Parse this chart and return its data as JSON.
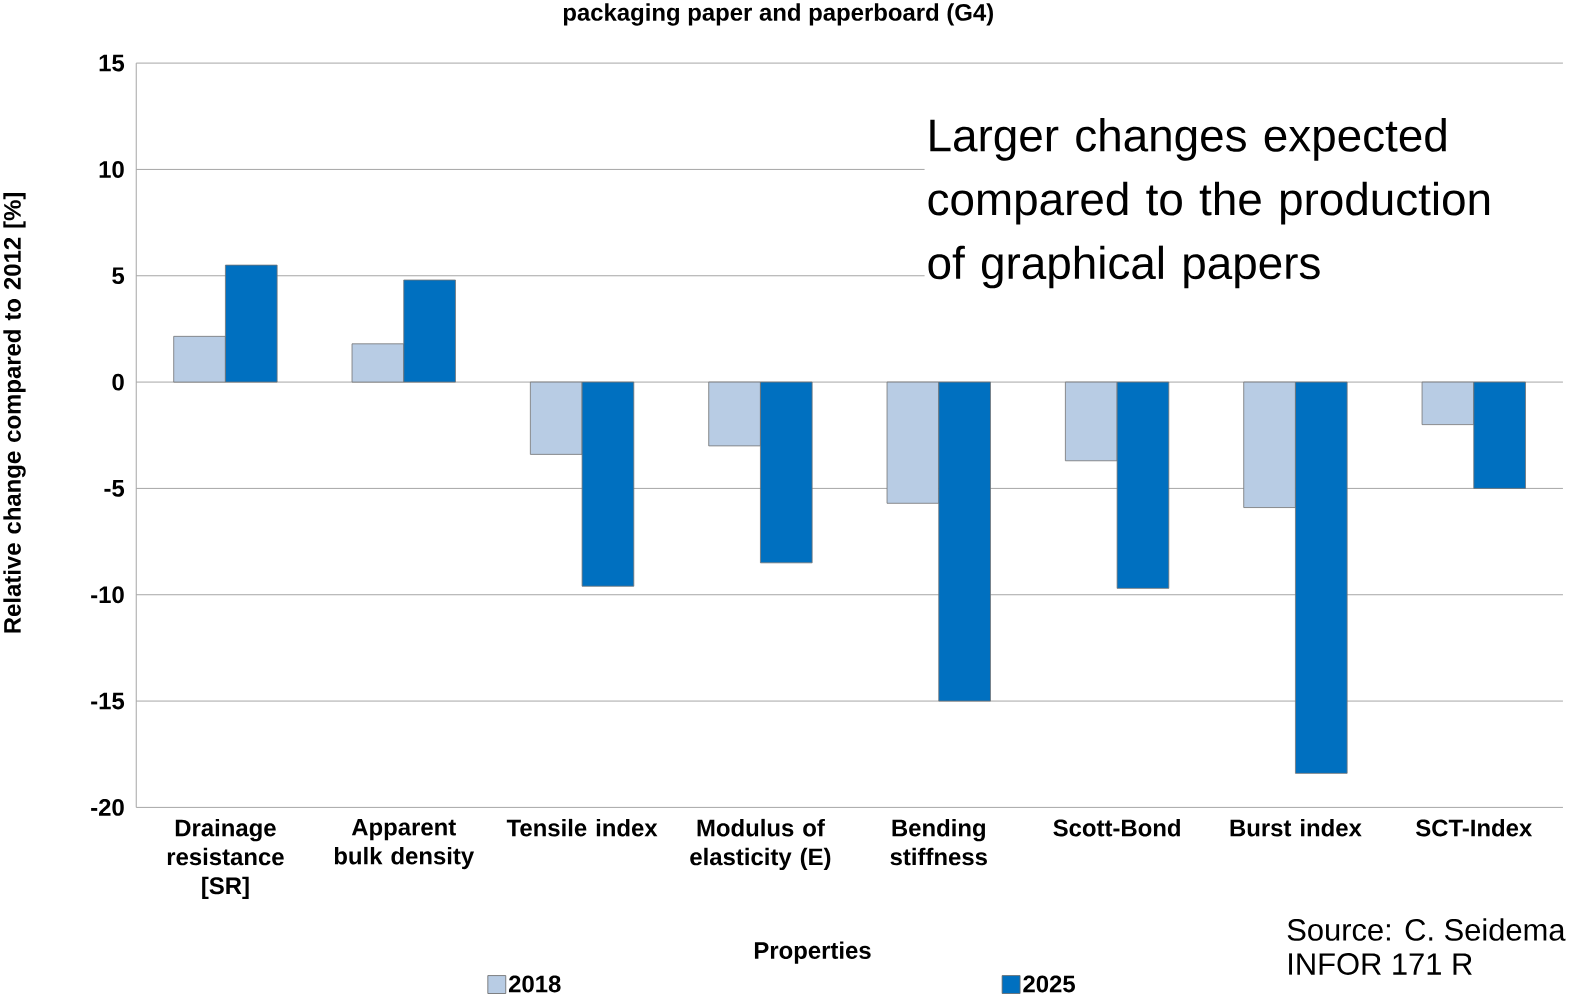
{
  "chart_data": {
    "type": "bar",
    "title": "packaging paper and paperboard (G4)",
    "xlabel": "Properties",
    "ylabel": "Relative change compared to 2012 [%]",
    "categories": [
      "Drainage resistance [SR]",
      "Apparent bulk density",
      "Tensile index",
      "Modulus of elasticity (E)",
      "Bending stiffness",
      "Scott-Bond",
      "Burst index",
      "SCT-Index"
    ],
    "series": [
      {
        "name": "2018",
        "color": "#b8cce4",
        "values": [
          2.15,
          1.8,
          -3.4,
          -3.0,
          -5.7,
          -3.7,
          -5.9,
          -2.0
        ]
      },
      {
        "name": "2025",
        "color": "#0070c0",
        "values": [
          5.5,
          4.8,
          -9.6,
          -8.5,
          -15.0,
          -9.7,
          -18.4,
          -5.0
        ]
      }
    ],
    "ylim": [
      -20,
      15
    ],
    "yticks": [
      -20,
      -15,
      -10,
      -5,
      0,
      5,
      10,
      15
    ],
    "grid": "y",
    "legend": "bottom",
    "annotations": [
      "Larger changes expected compared to the production of graphical papers",
      "Source: C. Seidema",
      "INFOR 171 R"
    ]
  }
}
